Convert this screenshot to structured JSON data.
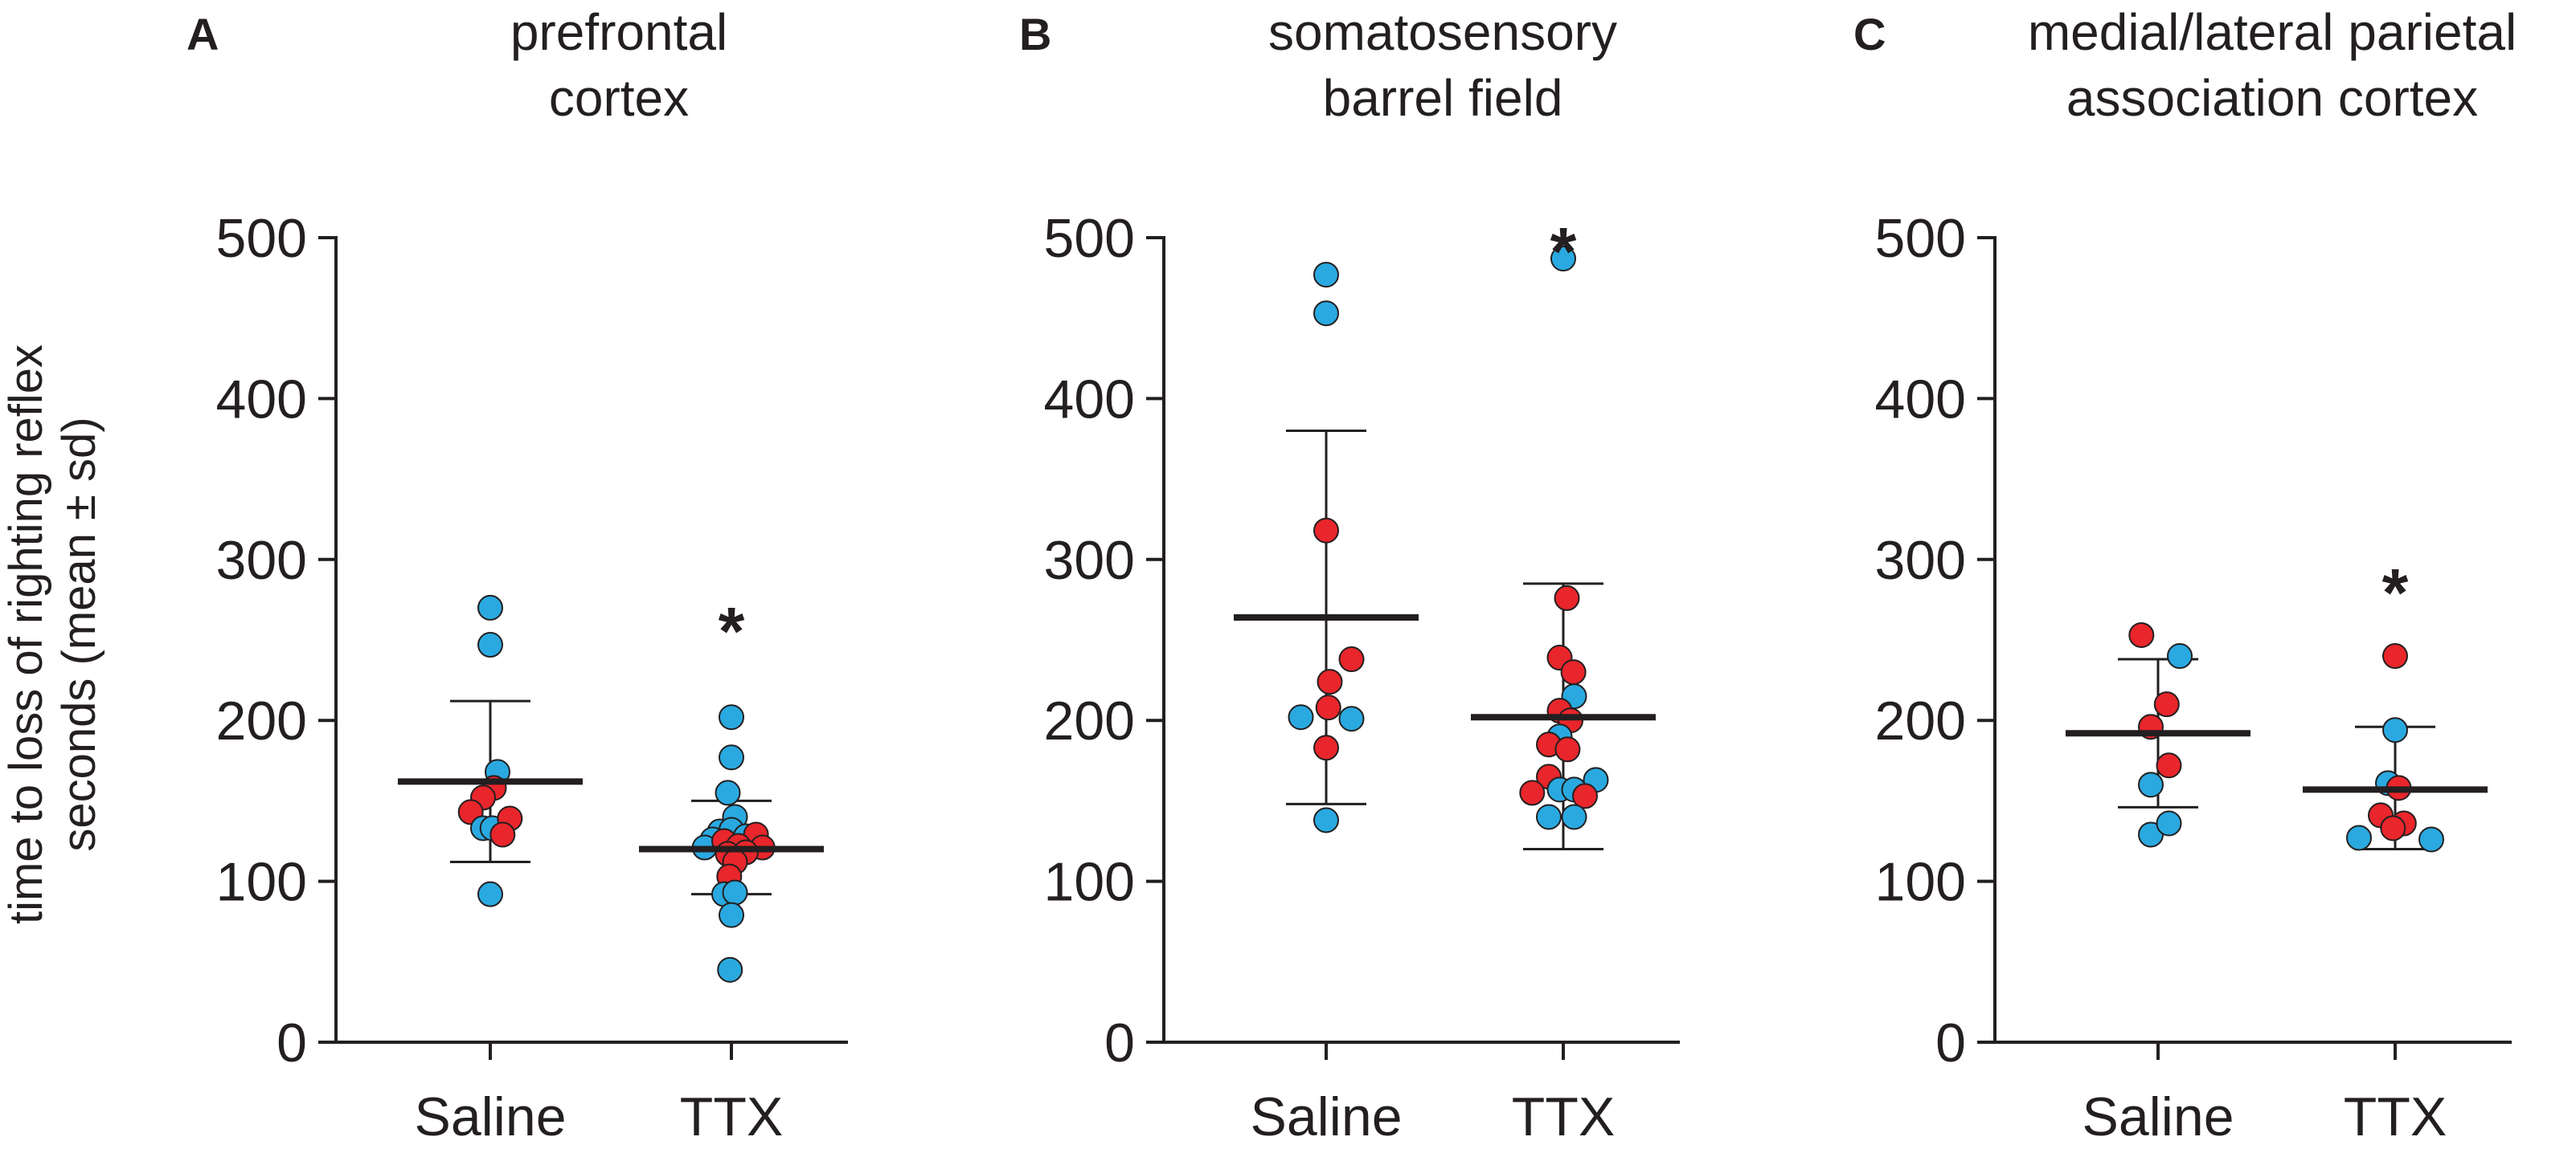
{
  "figure": {
    "ylabel_line1": "time to loss of righting reflex",
    "ylabel_line2": "seconds (mean ± sd)"
  },
  "colors": {
    "saline_blue": "#2aa9e0",
    "ttx_red": "#e8262b",
    "ink": "#231f20"
  },
  "chart_data": [
    {
      "type": "scatter",
      "panel_letter": "A",
      "title_lines": [
        "prefrontal",
        "cortex"
      ],
      "categories": [
        "Saline",
        "TTX"
      ],
      "ylim": [
        0,
        500
      ],
      "yticks": [
        0,
        100,
        200,
        300,
        400,
        500
      ],
      "summary": [
        {
          "category": "Saline",
          "mean": 162,
          "sd_high": 212,
          "sd_low": 112
        },
        {
          "category": "TTX",
          "mean": 120,
          "sd_high": 150,
          "sd_low": 92
        }
      ],
      "significance": [
        {
          "category": "TTX",
          "label": "*",
          "y": 262
        }
      ],
      "points": [
        {
          "category": "Saline",
          "offset": 0.0,
          "y": 270,
          "color": "blue"
        },
        {
          "category": "Saline",
          "offset": 0.0,
          "y": 247,
          "color": "blue"
        },
        {
          "category": "Saline",
          "offset": 0.1,
          "y": 168,
          "color": "blue"
        },
        {
          "category": "Saline",
          "offset": 0.05,
          "y": 158,
          "color": "red"
        },
        {
          "category": "Saline",
          "offset": -0.1,
          "y": 152,
          "color": "red"
        },
        {
          "category": "Saline",
          "offset": -0.27,
          "y": 143,
          "color": "red"
        },
        {
          "category": "Saline",
          "offset": -0.1,
          "y": 133,
          "color": "blue"
        },
        {
          "category": "Saline",
          "offset": 0.03,
          "y": 133,
          "color": "blue"
        },
        {
          "category": "Saline",
          "offset": 0.27,
          "y": 139,
          "color": "red"
        },
        {
          "category": "Saline",
          "offset": 0.17,
          "y": 129,
          "color": "red"
        },
        {
          "category": "Saline",
          "offset": 0.0,
          "y": 92,
          "color": "blue"
        },
        {
          "category": "TTX",
          "offset": 0.0,
          "y": 202,
          "color": "blue"
        },
        {
          "category": "TTX",
          "offset": 0.0,
          "y": 177,
          "color": "blue"
        },
        {
          "category": "TTX",
          "offset": -0.05,
          "y": 155,
          "color": "blue"
        },
        {
          "category": "TTX",
          "offset": 0.05,
          "y": 140,
          "color": "blue"
        },
        {
          "category": "TTX",
          "offset": -0.16,
          "y": 131,
          "color": "blue"
        },
        {
          "category": "TTX",
          "offset": 0.0,
          "y": 132,
          "color": "blue"
        },
        {
          "category": "TTX",
          "offset": 0.2,
          "y": 128,
          "color": "blue"
        },
        {
          "category": "TTX",
          "offset": -0.26,
          "y": 126,
          "color": "blue"
        },
        {
          "category": "TTX",
          "offset": 0.34,
          "y": 129,
          "color": "red"
        },
        {
          "category": "TTX",
          "offset": -0.37,
          "y": 121,
          "color": "blue"
        },
        {
          "category": "TTX",
          "offset": -0.1,
          "y": 125,
          "color": "red"
        },
        {
          "category": "TTX",
          "offset": 0.1,
          "y": 122,
          "color": "red"
        },
        {
          "category": "TTX",
          "offset": 0.43,
          "y": 121,
          "color": "red"
        },
        {
          "category": "TTX",
          "offset": -0.05,
          "y": 117,
          "color": "red"
        },
        {
          "category": "TTX",
          "offset": 0.2,
          "y": 118,
          "color": "red"
        },
        {
          "category": "TTX",
          "offset": 0.05,
          "y": 112,
          "color": "red"
        },
        {
          "category": "TTX",
          "offset": -0.03,
          "y": 103,
          "color": "red"
        },
        {
          "category": "TTX",
          "offset": -0.1,
          "y": 92,
          "color": "blue"
        },
        {
          "category": "TTX",
          "offset": 0.05,
          "y": 93,
          "color": "blue"
        },
        {
          "category": "TTX",
          "offset": 0.0,
          "y": 79,
          "color": "blue"
        },
        {
          "category": "TTX",
          "offset": -0.02,
          "y": 45,
          "color": "blue"
        }
      ]
    },
    {
      "type": "scatter",
      "panel_letter": "B",
      "title_lines": [
        "somatosensory",
        "barrel field"
      ],
      "categories": [
        "Saline",
        "TTX"
      ],
      "ylim": [
        0,
        500
      ],
      "yticks": [
        0,
        100,
        200,
        300,
        400,
        500
      ],
      "summary": [
        {
          "category": "Saline",
          "mean": 264,
          "sd_high": 380,
          "sd_low": 148
        },
        {
          "category": "TTX",
          "mean": 202,
          "sd_high": 285,
          "sd_low": 120
        }
      ],
      "significance": [
        {
          "category": "TTX",
          "label": "*",
          "y": 498
        }
      ],
      "points": [
        {
          "category": "Saline",
          "offset": 0.0,
          "y": 477,
          "color": "blue"
        },
        {
          "category": "Saline",
          "offset": 0.0,
          "y": 453,
          "color": "blue"
        },
        {
          "category": "Saline",
          "offset": 0.0,
          "y": 318,
          "color": "red"
        },
        {
          "category": "Saline",
          "offset": 0.35,
          "y": 238,
          "color": "red"
        },
        {
          "category": "Saline",
          "offset": 0.05,
          "y": 224,
          "color": "red"
        },
        {
          "category": "Saline",
          "offset": 0.03,
          "y": 208,
          "color": "red"
        },
        {
          "category": "Saline",
          "offset": -0.35,
          "y": 202,
          "color": "blue"
        },
        {
          "category": "Saline",
          "offset": 0.35,
          "y": 201,
          "color": "blue"
        },
        {
          "category": "Saline",
          "offset": 0.0,
          "y": 183,
          "color": "red"
        },
        {
          "category": "Saline",
          "offset": 0.0,
          "y": 138,
          "color": "blue"
        },
        {
          "category": "TTX",
          "offset": 0.0,
          "y": 487,
          "color": "blue"
        },
        {
          "category": "TTX",
          "offset": 0.05,
          "y": 276,
          "color": "red"
        },
        {
          "category": "TTX",
          "offset": -0.05,
          "y": 239,
          "color": "red"
        },
        {
          "category": "TTX",
          "offset": 0.14,
          "y": 230,
          "color": "red"
        },
        {
          "category": "TTX",
          "offset": 0.15,
          "y": 215,
          "color": "blue"
        },
        {
          "category": "TTX",
          "offset": -0.05,
          "y": 206,
          "color": "red"
        },
        {
          "category": "TTX",
          "offset": 0.1,
          "y": 200,
          "color": "red"
        },
        {
          "category": "TTX",
          "offset": -0.05,
          "y": 190,
          "color": "blue"
        },
        {
          "category": "TTX",
          "offset": -0.2,
          "y": 185,
          "color": "red"
        },
        {
          "category": "TTX",
          "offset": 0.06,
          "y": 182,
          "color": "red"
        },
        {
          "category": "TTX",
          "offset": -0.2,
          "y": 165,
          "color": "red"
        },
        {
          "category": "TTX",
          "offset": 0.45,
          "y": 163,
          "color": "blue"
        },
        {
          "category": "TTX",
          "offset": -0.05,
          "y": 157,
          "color": "blue"
        },
        {
          "category": "TTX",
          "offset": 0.15,
          "y": 157,
          "color": "blue"
        },
        {
          "category": "TTX",
          "offset": -0.43,
          "y": 155,
          "color": "red"
        },
        {
          "category": "TTX",
          "offset": 0.3,
          "y": 153,
          "color": "red"
        },
        {
          "category": "TTX",
          "offset": -0.2,
          "y": 140,
          "color": "blue"
        },
        {
          "category": "TTX",
          "offset": 0.15,
          "y": 140,
          "color": "blue"
        }
      ]
    },
    {
      "type": "scatter",
      "panel_letter": "C",
      "title_lines": [
        "medial/lateral parietal",
        "association cortex"
      ],
      "categories": [
        "Saline",
        "TTX"
      ],
      "ylim": [
        0,
        500
      ],
      "yticks": [
        0,
        100,
        200,
        300,
        400,
        500
      ],
      "summary": [
        {
          "category": "Saline",
          "mean": 192,
          "sd_high": 238,
          "sd_low": 146
        },
        {
          "category": "TTX",
          "mean": 157,
          "sd_high": 196,
          "sd_low": 120
        }
      ],
      "significance": [
        {
          "category": "TTX",
          "label": "*",
          "y": 286
        }
      ],
      "points": [
        {
          "category": "Saline",
          "offset": -0.23,
          "y": 253,
          "color": "red"
        },
        {
          "category": "Saline",
          "offset": 0.3,
          "y": 240,
          "color": "blue"
        },
        {
          "category": "Saline",
          "offset": 0.12,
          "y": 210,
          "color": "red"
        },
        {
          "category": "Saline",
          "offset": -0.1,
          "y": 196,
          "color": "red"
        },
        {
          "category": "Saline",
          "offset": 0.15,
          "y": 172,
          "color": "red"
        },
        {
          "category": "Saline",
          "offset": -0.1,
          "y": 160,
          "color": "blue"
        },
        {
          "category": "Saline",
          "offset": -0.1,
          "y": 129,
          "color": "blue"
        },
        {
          "category": "Saline",
          "offset": 0.15,
          "y": 136,
          "color": "blue"
        },
        {
          "category": "TTX",
          "offset": 0.0,
          "y": 240,
          "color": "red"
        },
        {
          "category": "TTX",
          "offset": 0.0,
          "y": 194,
          "color": "blue"
        },
        {
          "category": "TTX",
          "offset": -0.1,
          "y": 161,
          "color": "blue"
        },
        {
          "category": "TTX",
          "offset": 0.05,
          "y": 158,
          "color": "red"
        },
        {
          "category": "TTX",
          "offset": -0.2,
          "y": 141,
          "color": "red"
        },
        {
          "category": "TTX",
          "offset": 0.12,
          "y": 136,
          "color": "red"
        },
        {
          "category": "TTX",
          "offset": -0.03,
          "y": 133,
          "color": "red"
        },
        {
          "category": "TTX",
          "offset": -0.5,
          "y": 127,
          "color": "blue"
        },
        {
          "category": "TTX",
          "offset": 0.5,
          "y": 126,
          "color": "blue"
        }
      ]
    }
  ]
}
